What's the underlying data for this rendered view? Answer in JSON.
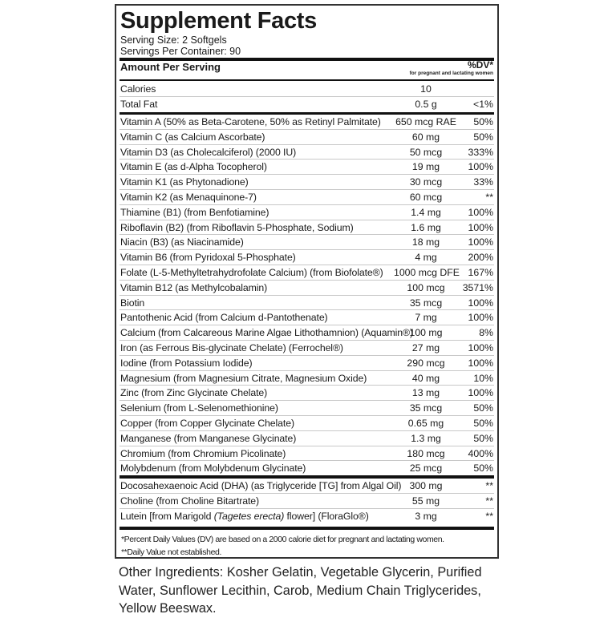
{
  "title": "Supplement Facts",
  "serving_size": "Serving Size: 2 Softgels",
  "servings_per_container": "Servings Per Container: 90",
  "header": {
    "amount": "Amount Per Serving",
    "dv": "%DV*",
    "dv_note": "for pregnant and lactating women"
  },
  "group1": [
    {
      "name": "Calories",
      "amount": "10",
      "dv": ""
    },
    {
      "name": "Total Fat",
      "amount": "0.5 g",
      "dv": "<1%"
    }
  ],
  "group2": [
    {
      "name": "Vitamin A (50% as Beta-Carotene, 50% as Retinyl Palmitate)",
      "amount": "650 mcg RAE",
      "dv": "50%"
    },
    {
      "name": "Vitamin C (as Calcium Ascorbate)",
      "amount": "60 mg",
      "dv": "50%"
    },
    {
      "name": "Vitamin D3 (as Cholecalciferol) (2000 IU)",
      "amount": "50 mcg",
      "dv": "333%"
    },
    {
      "name": "Vitamin E (as d-Alpha Tocopherol)",
      "amount": "19 mg",
      "dv": "100%"
    },
    {
      "name": "Vitamin K1 (as Phytonadione)",
      "amount": "30 mcg",
      "dv": "33%"
    },
    {
      "name": "Vitamin K2 (as Menaquinone-7)",
      "amount": "60 mcg",
      "dv": "**"
    },
    {
      "name": "Thiamine (B1) (from Benfotiamine)",
      "amount": "1.4 mg",
      "dv": "100%"
    },
    {
      "name": "Riboflavin (B2) (from Riboflavin 5-Phosphate, Sodium)",
      "amount": "1.6 mg",
      "dv": "100%"
    },
    {
      "name": "Niacin (B3) (as Niacinamide)",
      "amount": "18 mg",
      "dv": "100%"
    },
    {
      "name": "Vitamin B6 (from Pyridoxal 5-Phosphate)",
      "amount": "4 mg",
      "dv": "200%"
    },
    {
      "name": "Folate (L-5-Methyltetrahydrofolate Calcium) (from Biofolate®)",
      "amount": "1000 mcg DFE",
      "dv": "167%"
    },
    {
      "name": "Vitamin B12 (as Methylcobalamin)",
      "amount": "100 mcg",
      "dv": "3571%"
    },
    {
      "name": "Biotin",
      "amount": "35 mcg",
      "dv": "100%"
    },
    {
      "name": "Pantothenic Acid (from Calcium d-Pantothenate)",
      "amount": "7 mg",
      "dv": "100%"
    },
    {
      "name": "Calcium (from Calcareous Marine Algae Lithothamnion) (Aquamin®)",
      "amount": "100 mg",
      "dv": "8%"
    },
    {
      "name": "Iron (as Ferrous Bis-glycinate Chelate) (Ferrochel®)",
      "amount": "27 mg",
      "dv": "100%"
    },
    {
      "name": "Iodine (from Potassium Iodide)",
      "amount": "290 mcg",
      "dv": "100%"
    },
    {
      "name": "Magnesium (from Magnesium Citrate, Magnesium Oxide)",
      "amount": "40 mg",
      "dv": "10%"
    },
    {
      "name": "Zinc (from Zinc Glycinate Chelate)",
      "amount": "13 mg",
      "dv": "100%"
    },
    {
      "name": "Selenium (from L-Selenomethionine)",
      "amount": "35 mcg",
      "dv": "50%"
    },
    {
      "name": "Copper (from Copper Glycinate Chelate)",
      "amount": "0.65 mg",
      "dv": "50%"
    },
    {
      "name": "Manganese (from Manganese Glycinate)",
      "amount": "1.3 mg",
      "dv": "50%"
    },
    {
      "name": "Chromium (from Chromium Picolinate)",
      "amount": "180 mcg",
      "dv": "400%"
    },
    {
      "name": "Molybdenum (from Molybdenum Glycinate)",
      "amount": "25 mcg",
      "dv": "50%"
    }
  ],
  "group3": [
    {
      "name": "Docosahexaenoic Acid (DHA) (as Triglyceride [TG] from Algal Oil)",
      "amount": "300 mg",
      "dv": "**"
    },
    {
      "name": "Choline (from Choline Bitartrate)",
      "amount": "55 mg",
      "dv": "**"
    },
    {
      "name": "Lutein [from Marigold (Tagetes erecta) flower] (FloraGlo®)",
      "amount": "3 mg",
      "dv": "**"
    }
  ],
  "footnotes": {
    "dv": "*Percent Daily Values (DV) are based on a 2000 calorie diet for pregnant and lactating women.",
    "not_established": "**Daily Value not established."
  },
  "other_ingredients": {
    "label": "Other Ingredients:",
    "text": "Kosher Gelatin, Vegetable Glycerin, Purified Water, Sunflower Lecithin, Carob, Medium Chain Triglycerides, Yellow Beeswax."
  }
}
